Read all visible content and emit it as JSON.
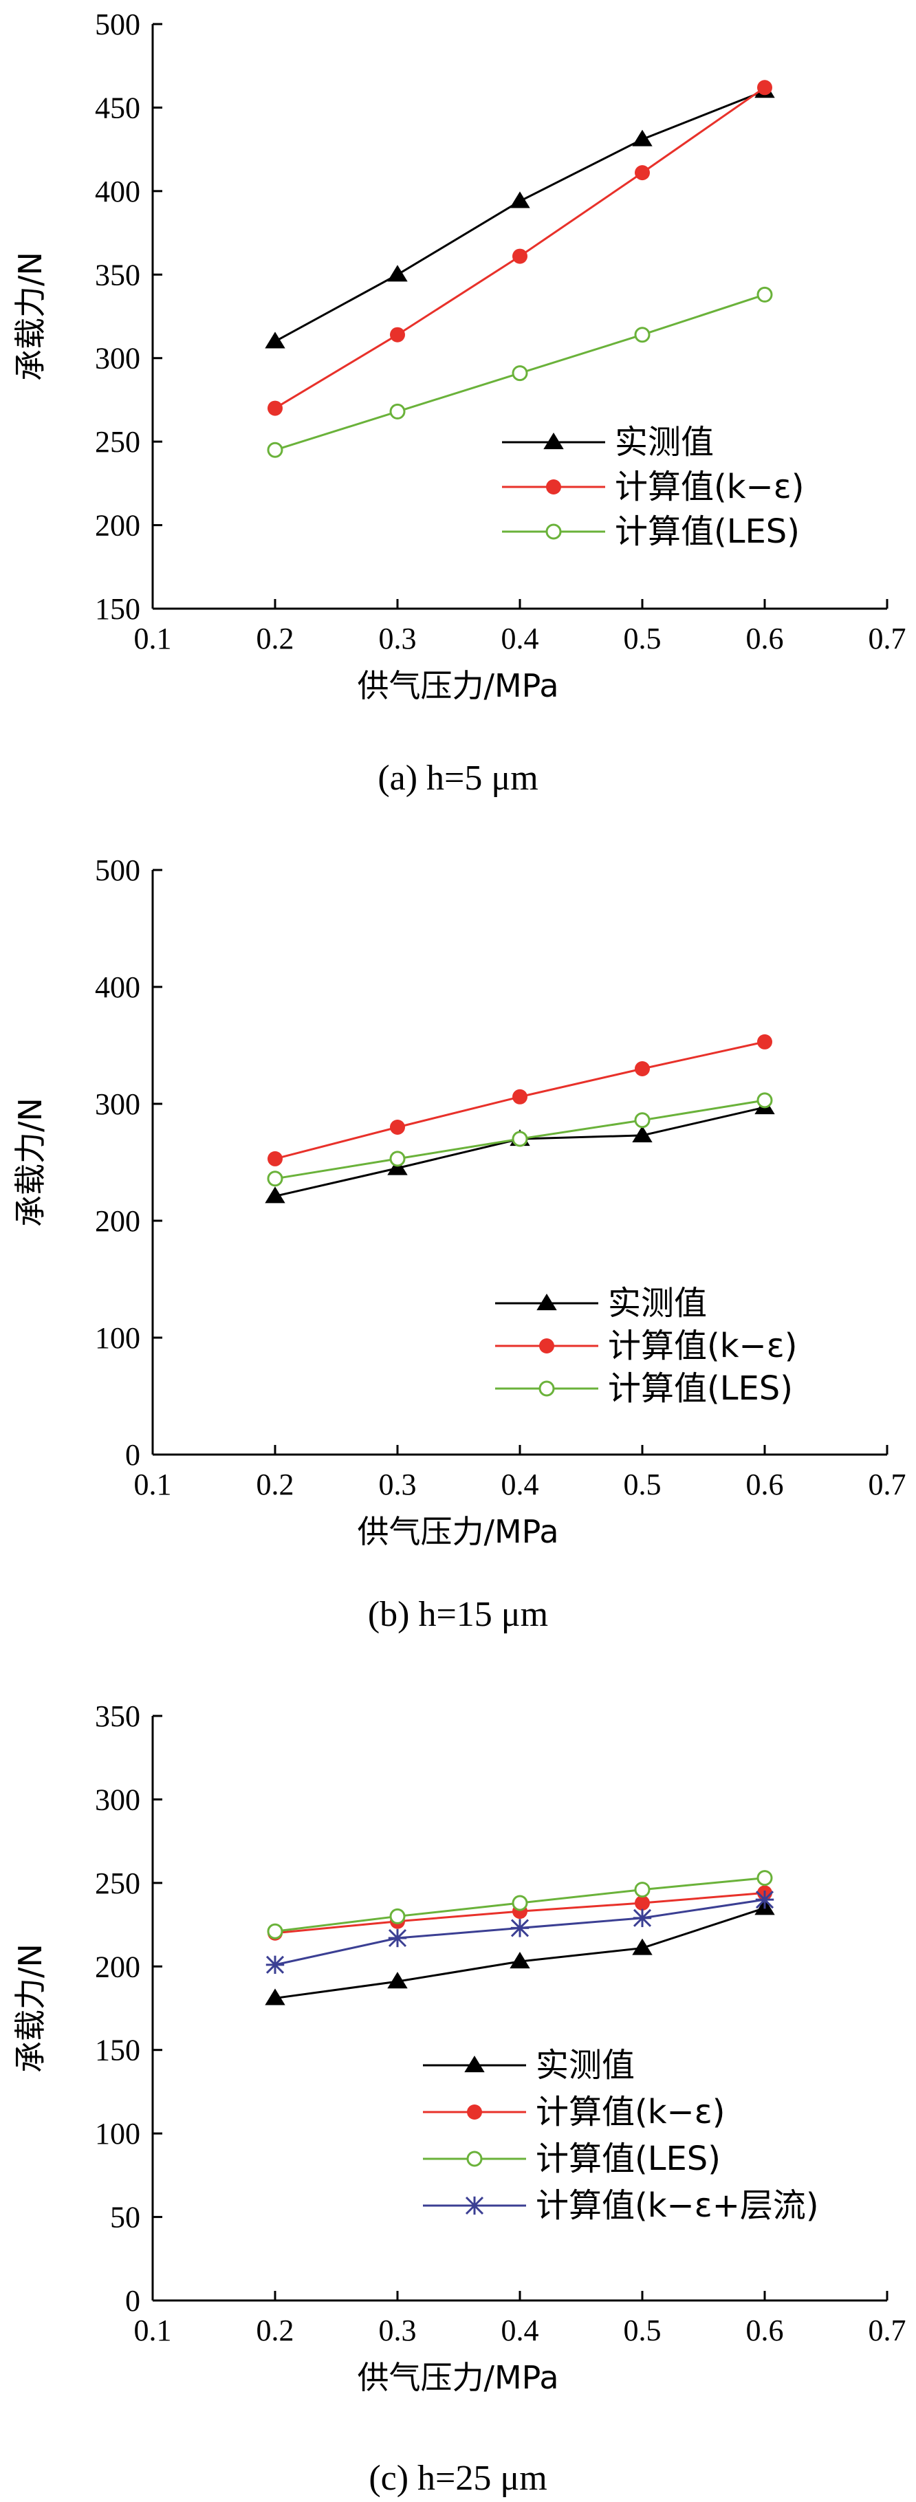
{
  "chart_data": [
    {
      "type": "line",
      "caption": "(a)  h=5 μm",
      "xlabel": "供气压力/MPa",
      "ylabel": "承载力/N",
      "xlim": [
        0.1,
        0.7
      ],
      "ylim": [
        150,
        500
      ],
      "xticks": [
        0.1,
        0.2,
        0.3,
        0.4,
        0.5,
        0.6,
        0.7
      ],
      "yticks": [
        150,
        200,
        250,
        300,
        350,
        400,
        450,
        500
      ],
      "grid": false,
      "legend_position": "bottom-right",
      "series": [
        {
          "name": "实测值",
          "color": "#000000",
          "marker": "triangle",
          "x": [
            0.2,
            0.3,
            0.4,
            0.5,
            0.6
          ],
          "values": [
            310,
            350,
            394,
            431,
            460
          ]
        },
        {
          "name": "计算值(k−ε)",
          "color": "#e8312a",
          "marker": "filled-circle",
          "x": [
            0.2,
            0.3,
            0.4,
            0.5,
            0.6
          ],
          "values": [
            270,
            314,
            361,
            411,
            462
          ]
        },
        {
          "name": "计算值(LES)",
          "color": "#6ab23a",
          "marker": "open-circle",
          "x": [
            0.2,
            0.3,
            0.4,
            0.5,
            0.6
          ],
          "values": [
            245,
            268,
            291,
            314,
            338
          ]
        }
      ]
    },
    {
      "type": "line",
      "caption": "(b)  h=15 μm",
      "xlabel": "供气压力/MPa",
      "ylabel": "承载力/N",
      "xlim": [
        0.1,
        0.7
      ],
      "ylim": [
        0,
        500
      ],
      "xticks": [
        0.1,
        0.2,
        0.3,
        0.4,
        0.5,
        0.6,
        0.7
      ],
      "yticks": [
        0,
        100,
        200,
        300,
        400,
        500
      ],
      "grid": false,
      "legend_position": "bottom-right",
      "series": [
        {
          "name": "实测值",
          "color": "#000000",
          "marker": "triangle",
          "x": [
            0.2,
            0.3,
            0.4,
            0.5,
            0.6
          ],
          "values": [
            221,
            245,
            270,
            273,
            297
          ]
        },
        {
          "name": "计算值(k−ε)",
          "color": "#e8312a",
          "marker": "filled-circle",
          "x": [
            0.2,
            0.3,
            0.4,
            0.5,
            0.6
          ],
          "values": [
            253,
            280,
            306,
            330,
            353
          ]
        },
        {
          "name": "计算值(LES)",
          "color": "#6ab23a",
          "marker": "open-circle",
          "x": [
            0.2,
            0.3,
            0.4,
            0.5,
            0.6
          ],
          "values": [
            236,
            253,
            270,
            286,
            303
          ]
        }
      ]
    },
    {
      "type": "line",
      "caption": "(c)  h=25 μm",
      "xlabel": "供气压力/MPa",
      "ylabel": "承载力/N",
      "xlim": [
        0.1,
        0.7
      ],
      "ylim": [
        0,
        350
      ],
      "xticks": [
        0.1,
        0.2,
        0.3,
        0.4,
        0.5,
        0.6,
        0.7
      ],
      "yticks": [
        0,
        50,
        100,
        150,
        200,
        250,
        300,
        350
      ],
      "grid": false,
      "legend_position": "bottom-right",
      "series": [
        {
          "name": "实测值",
          "color": "#000000",
          "marker": "triangle",
          "x": [
            0.2,
            0.3,
            0.4,
            0.5,
            0.6
          ],
          "values": [
            181,
            191,
            203,
            211,
            235
          ]
        },
        {
          "name": "计算值(k−ε)",
          "color": "#e8312a",
          "marker": "filled-circle",
          "x": [
            0.2,
            0.3,
            0.4,
            0.5,
            0.6
          ],
          "values": [
            220,
            227,
            233,
            238,
            244
          ]
        },
        {
          "name": "计算值(LES)",
          "color": "#6ab23a",
          "marker": "open-circle",
          "x": [
            0.2,
            0.3,
            0.4,
            0.5,
            0.6
          ],
          "values": [
            221,
            230,
            238,
            246,
            253
          ]
        },
        {
          "name": "计算值(k−ε+层流)",
          "color": "#3b3f93",
          "marker": "star-cross",
          "x": [
            0.2,
            0.3,
            0.4,
            0.5,
            0.6
          ],
          "values": [
            201,
            217,
            223,
            229,
            240
          ]
        }
      ]
    }
  ]
}
